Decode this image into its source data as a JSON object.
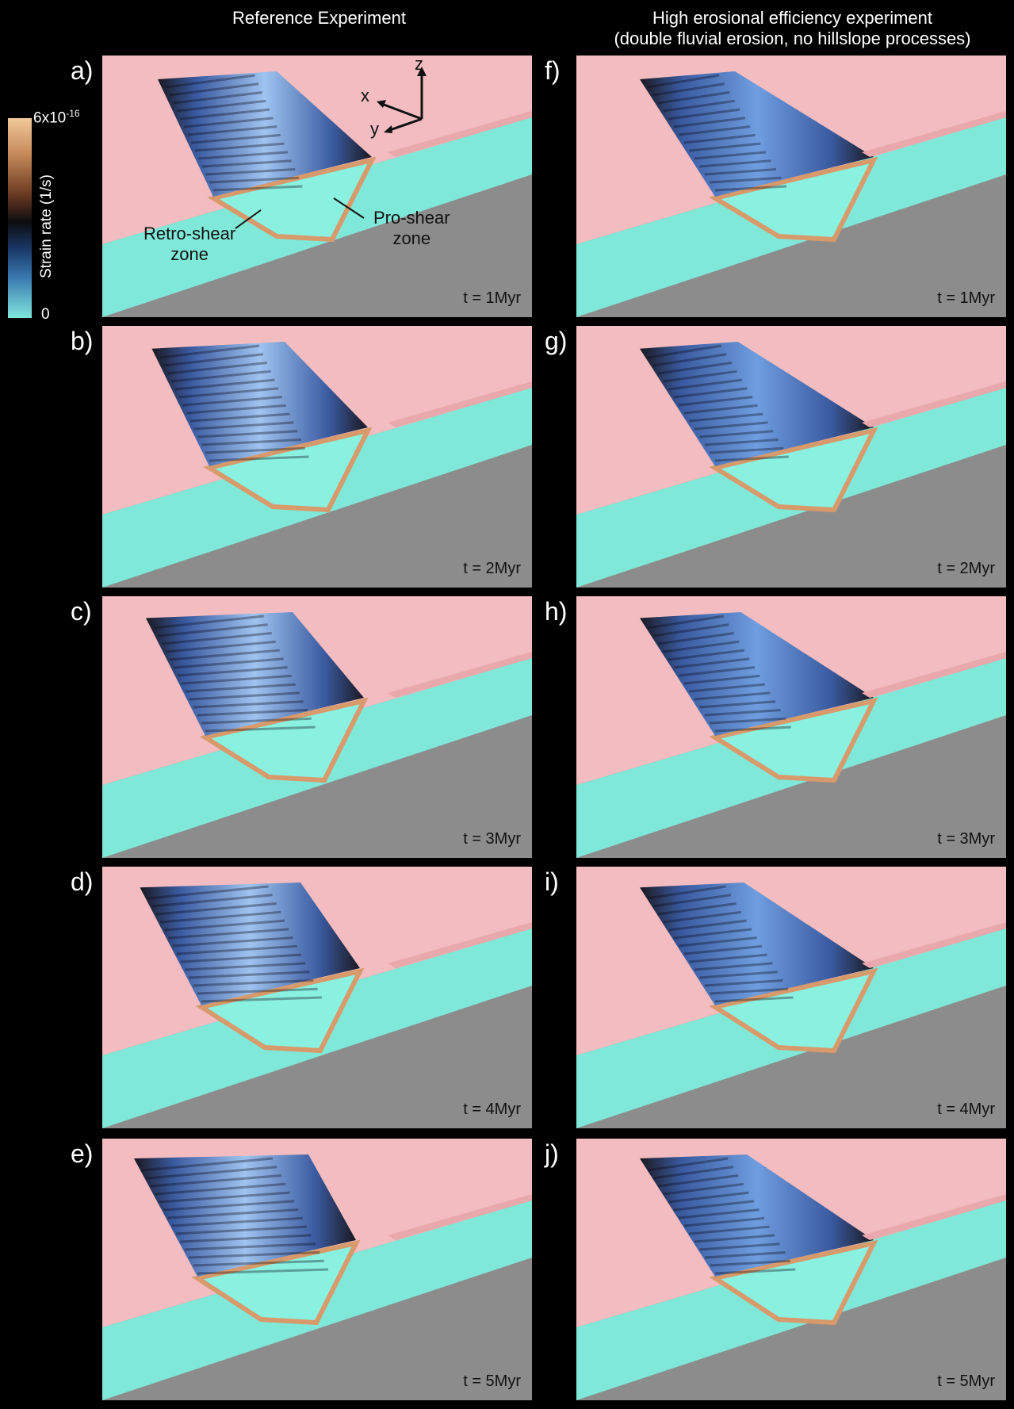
{
  "titles": {
    "left": "Reference Experiment",
    "right_line1": "High erosional efficiency experiment",
    "right_line2": "(double fluvial erosion, no hillslope processes)"
  },
  "colorbar": {
    "max_base": "6x10",
    "max_exp": "-16",
    "min": "0",
    "title": "Strain rate (1/s)",
    "colors": [
      "#7fe6dc",
      "#3a7ab0",
      "#0c0c10",
      "#c58a5a",
      "#f2c89a"
    ]
  },
  "annotations": {
    "retro_line1": "Retro-shear",
    "retro_line2": "zone",
    "pro_line1": "Pro-shear",
    "pro_line2": "zone",
    "axis_x": "x",
    "axis_y": "y",
    "axis_z": "z"
  },
  "panels": [
    {
      "label": "a)",
      "time": "t = 1Myr",
      "column": "left"
    },
    {
      "label": "b)",
      "time": "t = 2Myr",
      "column": "left"
    },
    {
      "label": "c)",
      "time": "t = 3Myr",
      "column": "left"
    },
    {
      "label": "d)",
      "time": "t = 4Myr",
      "column": "left"
    },
    {
      "label": "e)",
      "time": "t = 5Myr",
      "column": "left"
    },
    {
      "label": "f)",
      "time": "t = 1Myr",
      "column": "right"
    },
    {
      "label": "g)",
      "time": "t = 2Myr",
      "column": "right"
    },
    {
      "label": "h)",
      "time": "t = 3Myr",
      "column": "right"
    },
    {
      "label": "i)",
      "time": "t = 4Myr",
      "column": "right"
    },
    {
      "label": "j)",
      "time": "t = 5Myr",
      "column": "right"
    }
  ],
  "colors": {
    "surface": "#f2bcc0",
    "crust_side": "#7fe8d8",
    "background": "#8c8c8c",
    "orogen_blue": "#4a78c8",
    "shear_zone": "#d89a6a"
  }
}
